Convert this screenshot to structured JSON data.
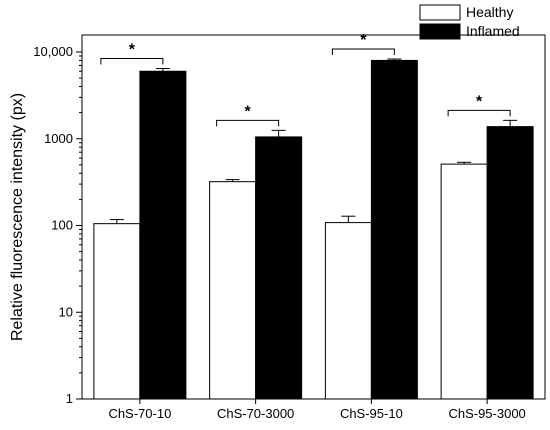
{
  "chart_data": {
    "type": "bar",
    "yscale": "log",
    "ylabel": "Relative fluorescence intensity (px)",
    "xlabel": "",
    "title": "",
    "ylim": [
      1,
      10000
    ],
    "yticks": [
      1,
      10,
      100,
      1000,
      10000
    ],
    "ytick_labels": [
      "1",
      "10",
      "100",
      "1000",
      "10,000"
    ],
    "categories": [
      "ChS-70-10",
      "ChS-70-3000",
      "ChS-95-10",
      "ChS-95-3000"
    ],
    "series": [
      {
        "name": "Healthy",
        "color": "#ffffff",
        "values": [
          105,
          320,
          108,
          510
        ],
        "errors": [
          12,
          18,
          20,
          25
        ]
      },
      {
        "name": "Inflamed",
        "color": "#000000",
        "values": [
          6000,
          1050,
          8000,
          1380
        ],
        "errors": [
          450,
          200,
          300,
          250
        ]
      }
    ],
    "significance": [
      "*",
      "*",
      "*",
      "*"
    ],
    "legend_position": "top-right",
    "grid": false
  }
}
